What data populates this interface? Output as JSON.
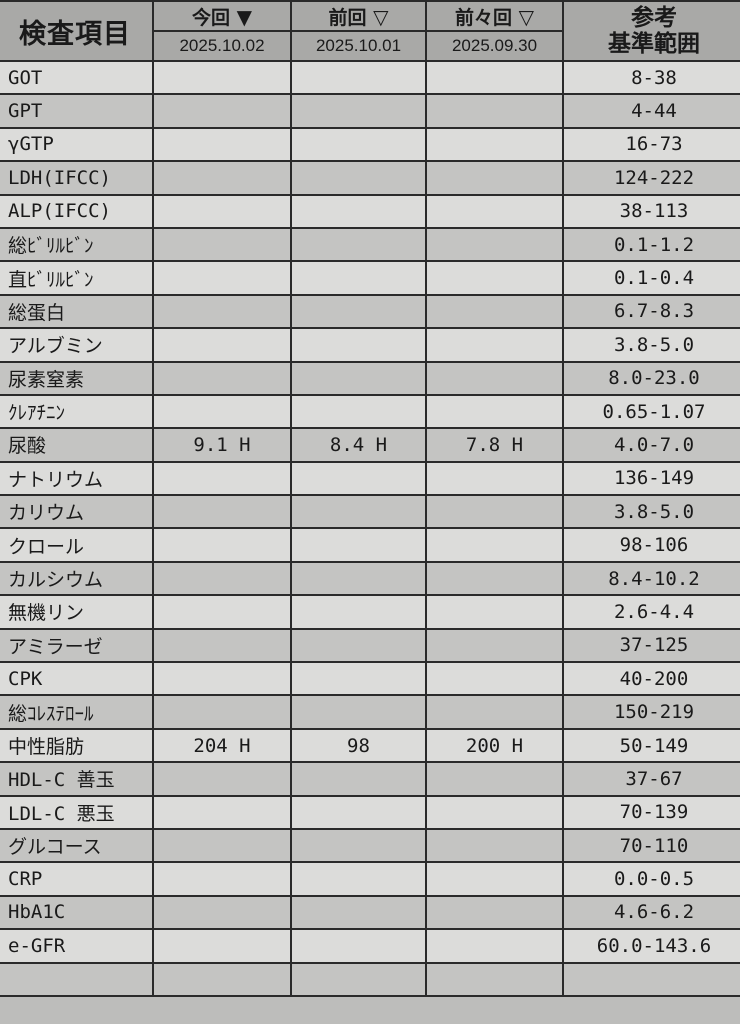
{
  "header": {
    "item": "検査項目",
    "current": {
      "label": "今回",
      "icon": "filled-triangle-down-icon",
      "date": "2025.10.02"
    },
    "previous": {
      "label": "前回",
      "icon": "outline-triangle-down-icon",
      "date": "2025.10.01"
    },
    "before_previous": {
      "label": "前々回",
      "icon": "outline-triangle-down-icon",
      "date": "2025.09.30"
    },
    "reference_line1": "参考",
    "reference_line2": "基準範囲"
  },
  "rows": [
    {
      "name": "GOT",
      "current": "",
      "previous": "",
      "before": "",
      "ref": "8-38"
    },
    {
      "name": "GPT",
      "current": "",
      "previous": "",
      "before": "",
      "ref": "4-44"
    },
    {
      "name": "γGTP",
      "current": "",
      "previous": "",
      "before": "",
      "ref": "16-73"
    },
    {
      "name": "LDH(IFCC)",
      "current": "",
      "previous": "",
      "before": "",
      "ref": "124-222"
    },
    {
      "name": "ALP(IFCC)",
      "current": "",
      "previous": "",
      "before": "",
      "ref": "38-113"
    },
    {
      "name": "総ﾋﾞﾘﾙﾋﾞﾝ",
      "current": "",
      "previous": "",
      "before": "",
      "ref": "0.1-1.2"
    },
    {
      "name": "直ﾋﾞﾘﾙﾋﾞﾝ",
      "current": "",
      "previous": "",
      "before": "",
      "ref": "0.1-0.4"
    },
    {
      "name": "総蛋白",
      "current": "",
      "previous": "",
      "before": "",
      "ref": "6.7-8.3"
    },
    {
      "name": "アルブミン",
      "current": "",
      "previous": "",
      "before": "",
      "ref": "3.8-5.0"
    },
    {
      "name": "尿素窒素",
      "current": "",
      "previous": "",
      "before": "",
      "ref": "8.0-23.0"
    },
    {
      "name": "ｸﾚｱﾁﾆﾝ",
      "current": "",
      "previous": "",
      "before": "",
      "ref": "0.65-1.07"
    },
    {
      "name": "尿酸",
      "current": "9.1 H",
      "previous": "8.4 H",
      "before": "7.8 H",
      "ref": "4.0-7.0"
    },
    {
      "name": "ナトリウム",
      "current": "",
      "previous": "",
      "before": "",
      "ref": "136-149"
    },
    {
      "name": "カリウム",
      "current": "",
      "previous": "",
      "before": "",
      "ref": "3.8-5.0"
    },
    {
      "name": "クロール",
      "current": "",
      "previous": "",
      "before": "",
      "ref": "98-106"
    },
    {
      "name": "カルシウム",
      "current": "",
      "previous": "",
      "before": "",
      "ref": "8.4-10.2"
    },
    {
      "name": "無機リン",
      "current": "",
      "previous": "",
      "before": "",
      "ref": "2.6-4.4"
    },
    {
      "name": "アミラーゼ",
      "current": "",
      "previous": "",
      "before": "",
      "ref": "37-125"
    },
    {
      "name": "CPK",
      "current": "",
      "previous": "",
      "before": "",
      "ref": "40-200"
    },
    {
      "name": "総ｺﾚｽﾃﾛｰﾙ",
      "current": "",
      "previous": "",
      "before": "",
      "ref": "150-219"
    },
    {
      "name": "中性脂肪",
      "current": "204 H",
      "previous": "98",
      "before": "200 H",
      "ref": "50-149"
    },
    {
      "name": "HDL-C 善玉",
      "current": "",
      "previous": "",
      "before": "",
      "ref": "37-67"
    },
    {
      "name": "LDL-C 悪玉",
      "current": "",
      "previous": "",
      "before": "",
      "ref": "70-139"
    },
    {
      "name": "グルコース",
      "current": "",
      "previous": "",
      "before": "",
      "ref": "70-110"
    },
    {
      "name": "CRP",
      "current": "",
      "previous": "",
      "before": "",
      "ref": "0.0-0.5"
    },
    {
      "name": "HbA1C",
      "current": "",
      "previous": "",
      "before": "",
      "ref": "4.6-6.2"
    },
    {
      "name": "e-GFR",
      "current": "",
      "previous": "",
      "before": "",
      "ref": "60.0-143.6"
    }
  ]
}
